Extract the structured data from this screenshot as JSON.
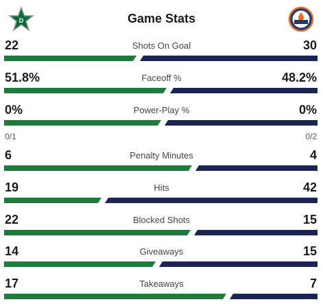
{
  "header": {
    "title": "Game Stats",
    "home_logo": "dallas-stars-logo",
    "away_logo": "edmonton-oilers-logo"
  },
  "colors": {
    "home": "#1f7a3d",
    "away": "#1b2452"
  },
  "stats": [
    {
      "label": "Shots On Goal",
      "home": "22",
      "away": "30",
      "home_share": 0.423
    },
    {
      "label": "Faceoff %",
      "home": "51.8%",
      "away": "48.2%",
      "home_share": 0.518,
      "sub_home": "",
      "sub_away": ""
    },
    {
      "label": "Power-Play %",
      "home": "0%",
      "away": "0%",
      "home_share": 0.5,
      "sub_home": "0/1",
      "sub_away": "0/2"
    },
    {
      "label": "Penalty Minutes",
      "home": "6",
      "away": "4",
      "home_share": 0.6
    },
    {
      "label": "Hits",
      "home": "19",
      "away": "42",
      "home_share": 0.311
    },
    {
      "label": "Blocked Shots",
      "home": "22",
      "away": "15",
      "home_share": 0.595
    },
    {
      "label": "Giveaways",
      "home": "14",
      "away": "15",
      "home_share": 0.483
    },
    {
      "label": "Takeaways",
      "home": "17",
      "away": "7",
      "home_share": 0.708
    }
  ]
}
